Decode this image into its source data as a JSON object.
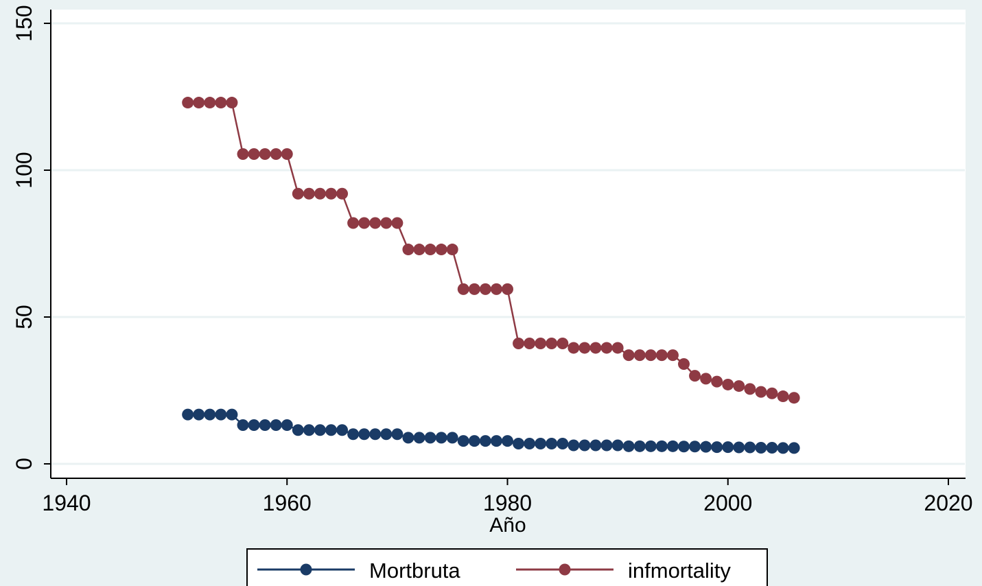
{
  "chart_data": {
    "type": "line",
    "title": "",
    "xlabel": "Año",
    "ylabel": "",
    "xlim": [
      1940,
      2020
    ],
    "ylim": [
      0,
      150
    ],
    "xticks": [
      1940,
      1960,
      1980,
      2000,
      2020
    ],
    "yticks": [
      0,
      50,
      100,
      150
    ],
    "grid": "horizontal",
    "legend_position": "bottom",
    "x": [
      1951,
      1952,
      1953,
      1954,
      1955,
      1956,
      1957,
      1958,
      1959,
      1960,
      1961,
      1962,
      1963,
      1964,
      1965,
      1966,
      1967,
      1968,
      1969,
      1970,
      1971,
      1972,
      1973,
      1974,
      1975,
      1976,
      1977,
      1978,
      1979,
      1980,
      1981,
      1982,
      1983,
      1984,
      1985,
      1986,
      1987,
      1988,
      1989,
      1990,
      1991,
      1992,
      1993,
      1994,
      1995,
      1996,
      1997,
      1998,
      1999,
      2000,
      2001,
      2002,
      2003,
      2004,
      2005,
      2006
    ],
    "series": [
      {
        "name": "Mortbruta",
        "color": "#1a3b66",
        "values": [
          16.8,
          16.8,
          16.8,
          16.8,
          16.8,
          13.2,
          13.2,
          13.2,
          13.2,
          13.2,
          11.5,
          11.5,
          11.5,
          11.5,
          11.5,
          10.1,
          10.1,
          10.1,
          10.1,
          10.1,
          8.9,
          8.9,
          8.9,
          8.9,
          8.9,
          7.8,
          7.8,
          7.8,
          7.8,
          7.8,
          6.9,
          6.9,
          6.9,
          6.9,
          6.9,
          6.3,
          6.3,
          6.3,
          6.3,
          6.3,
          6.0,
          6.0,
          6.0,
          6.0,
          6.0,
          5.9,
          5.9,
          5.8,
          5.7,
          5.7,
          5.6,
          5.6,
          5.5,
          5.5,
          5.4,
          5.4
        ]
      },
      {
        "name": "infmortality",
        "color": "#8e3a44",
        "values": [
          123,
          123,
          123,
          123,
          123,
          105.5,
          105.5,
          105.5,
          105.5,
          105.5,
          92,
          92,
          92,
          92,
          92,
          82,
          82,
          82,
          82,
          82,
          73,
          73,
          73,
          73,
          73,
          59.5,
          59.5,
          59.5,
          59.5,
          59.5,
          41,
          41,
          41,
          41,
          41,
          39.5,
          39.5,
          39.5,
          39.5,
          39.5,
          37,
          37,
          37,
          37,
          37,
          34,
          30,
          29,
          28,
          27,
          26.5,
          25.5,
          24.5,
          24,
          23,
          22.5
        ]
      }
    ]
  }
}
